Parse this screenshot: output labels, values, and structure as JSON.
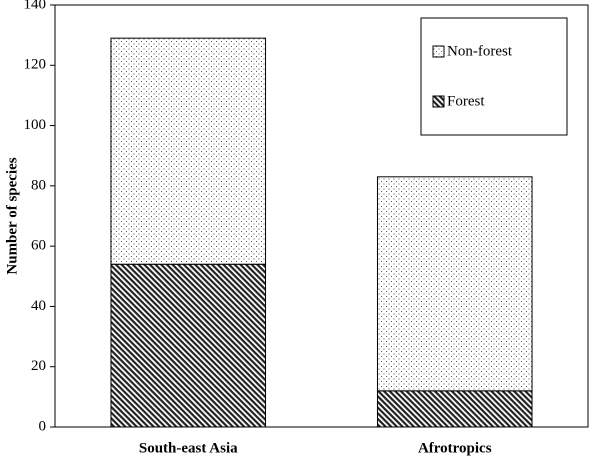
{
  "chart_data": {
    "type": "stacked-bar",
    "y_label": "Number of species",
    "categories": [
      "South-east Asia",
      "Afrotropics"
    ],
    "series": [
      {
        "name": "Forest",
        "color": "#000000",
        "pattern": "diagonal",
        "values": [
          54,
          12
        ]
      },
      {
        "name": "Non-forest",
        "color": "#000000",
        "pattern": "dotted",
        "values": [
          75,
          71
        ]
      }
    ],
    "ylim": [
      0,
      140
    ],
    "yticks": [
      0,
      20,
      40,
      60,
      80,
      100,
      120,
      140
    ],
    "grid": false,
    "legend": "top-right"
  }
}
